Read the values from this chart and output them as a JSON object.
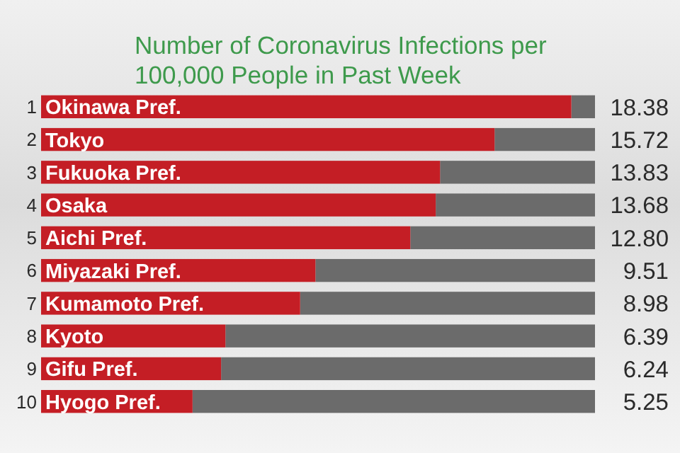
{
  "chart_data": {
    "type": "bar",
    "orientation": "horizontal",
    "title": "Number of Coronavirus Infections per 100,000 People in Past Week",
    "categories": [
      "Okinawa Pref.",
      "Tokyo",
      "Fukuoka Pref.",
      "Osaka",
      "Aichi Pref.",
      "Miyazaki Pref.",
      "Kumamoto Pref.",
      "Kyoto",
      "Gifu Pref.",
      "Hyogo Pref."
    ],
    "values": [
      18.38,
      15.72,
      13.83,
      13.68,
      12.8,
      9.51,
      8.98,
      6.39,
      6.24,
      5.25
    ],
    "color": "#c41e25",
    "xlim": [
      0,
      19.2
    ],
    "data_labels": true,
    "value_labels": [
      "18.38",
      "15.72",
      "13.83",
      "13.68",
      "12.80",
      "9.51",
      "8.98",
      "6.39",
      "6.24",
      "5.25"
    ],
    "annotations": [
      "1",
      "2",
      "3",
      "4",
      "5",
      "6",
      "7",
      "8",
      "9",
      "10"
    ]
  }
}
